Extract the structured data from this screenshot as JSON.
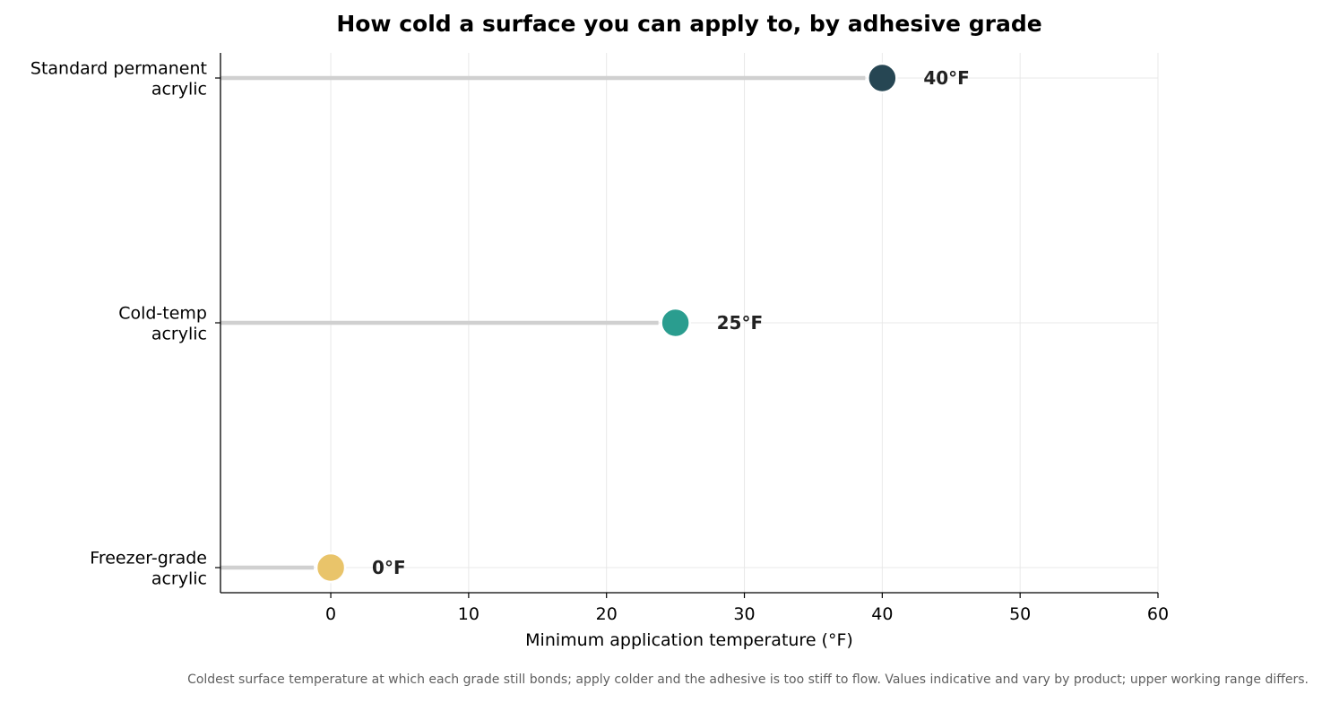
{
  "chart_data": {
    "type": "lollipop",
    "title": "How cold a surface you can apply to, by adhesive grade",
    "xlabel": "Minimum application temperature (°F)",
    "ylabel": "",
    "xlim": [
      -8,
      60
    ],
    "x_ticks": [
      0,
      10,
      20,
      30,
      40,
      50,
      60
    ],
    "grid": true,
    "legend": "none",
    "categories": [
      [
        "Standard permanent",
        "acrylic"
      ],
      [
        "Cold-temp",
        "acrylic"
      ],
      [
        "Freezer-grade",
        "acrylic"
      ]
    ],
    "values": [
      40,
      25,
      0
    ],
    "value_labels": [
      "40°F",
      "25°F",
      "0°F"
    ],
    "colors": [
      "#264653",
      "#2a9d8f",
      "#e9c46a"
    ],
    "stem_color": "#d0d0d0",
    "footnote": "Coldest surface temperature at which each grade still bonds; apply colder and the adhesive is too stiff to flow. Values indicative and vary by product; upper working range differs."
  }
}
